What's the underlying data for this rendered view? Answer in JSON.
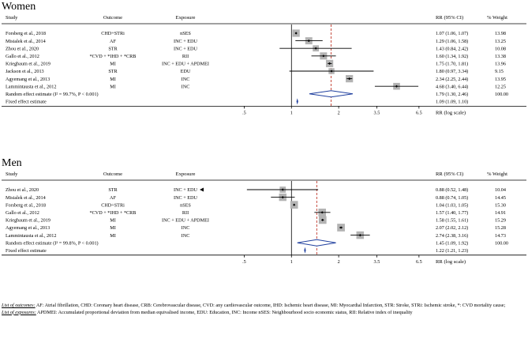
{
  "chart_data": [
    {
      "type": "forest",
      "title": "Women",
      "headers": {
        "study": "Study",
        "outcome": "Outcome",
        "exposure": "Exposure",
        "rr": "RR (95% CI)",
        "weight": "% Weight"
      },
      "xlabel": "RR (log scale)",
      "xticks": [
        ".5",
        "1",
        "2",
        "3.5",
        "6.5"
      ],
      "xlim": [
        0.26,
        8.4
      ],
      "null_line": 1,
      "pooled_line": 1.79,
      "studies": [
        {
          "study": "Forsberg et al., 2018",
          "outcome": "CHD+STRi",
          "exposure": "nSES",
          "rr": 1.07,
          "lo": 1.06,
          "hi": 1.07,
          "label": "1.07 (1.06, 1.07)",
          "weight": "13.98"
        },
        {
          "study": "Misialek et al., 2014",
          "outcome": "AF",
          "exposure": "INC + EDU",
          "rr": 1.29,
          "lo": 1.06,
          "hi": 1.58,
          "label": "1.29 (1.06, 1.58)",
          "weight": "13.25"
        },
        {
          "study": "Zhou et al., 2020",
          "outcome": "STR",
          "exposure": "INC + EDU",
          "rr": 1.43,
          "lo": 0.84,
          "hi": 2.42,
          "label": "1.43 (0.84, 2.42)",
          "weight": "10.08"
        },
        {
          "study": "Gallo et al., 2012",
          "outcome": "*CVD + *IHD + *CRB",
          "exposure": "RII",
          "rr": 1.6,
          "lo": 1.34,
          "hi": 1.92,
          "label": "1.60 (1.34, 1.92)",
          "weight": "13.38"
        },
        {
          "study": "Kriegbaum et al., 2019",
          "outcome": "MI",
          "exposure": "INC + EDU + APDMEI",
          "rr": 1.75,
          "lo": 1.7,
          "hi": 1.81,
          "label": "1.75 (1.70, 1.81)",
          "weight": "13.96"
        },
        {
          "study": "Jackson et al., 2013",
          "outcome": "STR",
          "exposure": "EDU",
          "rr": 1.8,
          "lo": 0.97,
          "hi": 3.34,
          "label": "1.80 (0.97, 3.34)",
          "weight": "9.15"
        },
        {
          "study": "Agyemang et al., 2013",
          "outcome": "MI",
          "exposure": "INC",
          "rr": 2.34,
          "lo": 2.25,
          "hi": 2.44,
          "label": "2.34 (2.25, 2.44)",
          "weight": "13.95"
        },
        {
          "study": "Lammintausta et al., 2012",
          "outcome": "MI",
          "exposure": "INC",
          "rr": 4.68,
          "lo": 3.4,
          "hi": 6.44,
          "label": "4.68 (3.40, 6.44)",
          "weight": "12.25"
        }
      ],
      "random": {
        "label_text": "Random effect estimate (I² = 99.7%, P < 0.001)",
        "rr": 1.79,
        "lo": 1.3,
        "hi": 2.46,
        "label": "1.79 (1.30, 2.46)",
        "weight": "100.00"
      },
      "fixed": {
        "label_text": "Fixed effect estimate",
        "rr": 1.09,
        "lo": 1.09,
        "hi": 1.1,
        "label": "1.09 (1.09, 1.10)"
      }
    },
    {
      "type": "forest",
      "title": "Men",
      "headers": {
        "study": "Study",
        "outcome": "Outcome",
        "exposure": "Exposure",
        "rr": "RR (95% CI)",
        "weight": "% Weight"
      },
      "xlabel": "RR (log scale)",
      "xticks": [
        ".5",
        "1",
        "2",
        "3.5",
        "6.5"
      ],
      "xlim": [
        0.26,
        8.4
      ],
      "null_line": 1,
      "pooled_line": 1.45,
      "studies": [
        {
          "study": "Zhou et al., 2020",
          "outcome": "STR",
          "exposure": "INC + EDU",
          "rr": 0.88,
          "lo": 0.52,
          "hi": 1.48,
          "label": "0.88 (0.52, 1.48)",
          "weight": "10.04",
          "arrow_left": true
        },
        {
          "study": "Misialek et al., 2014",
          "outcome": "AF",
          "exposure": "INC + EDU",
          "rr": 0.88,
          "lo": 0.74,
          "hi": 1.05,
          "label": "0.88 (0.74, 1.05)",
          "weight": "14.45"
        },
        {
          "study": "Forsberg et al., 2018",
          "outcome": "CHD+STRi",
          "exposure": "nSES",
          "rr": 1.04,
          "lo": 1.03,
          "hi": 1.05,
          "label": "1.04 (1.03, 1.05)",
          "weight": "15.30"
        },
        {
          "study": "Gallo et al., 2012",
          "outcome": "*CVD + *IHD + *CRB",
          "exposure": "RII",
          "rr": 1.57,
          "lo": 1.4,
          "hi": 1.77,
          "label": "1.57 (1.40, 1.77)",
          "weight": "14.91"
        },
        {
          "study": "Kriegbaum et al., 2019",
          "outcome": "MI",
          "exposure": "INC + EDU + APDMEI",
          "rr": 1.58,
          "lo": 1.55,
          "hi": 1.61,
          "label": "1.58 (1.55, 1.61)",
          "weight": "15.29"
        },
        {
          "study": "Agyemang et al., 2013",
          "outcome": "MI",
          "exposure": "INC",
          "rr": 2.07,
          "lo": 2.02,
          "hi": 2.12,
          "label": "2.07 (2.02, 2.12)",
          "weight": "15.28"
        },
        {
          "study": "Lammintausta et al., 2012",
          "outcome": "MI",
          "exposure": "INC",
          "rr": 2.74,
          "lo": 2.38,
          "hi": 3.16,
          "label": "2.74 (2.38, 3.16)",
          "weight": "14.73"
        }
      ],
      "random": {
        "label_text": "Random effect estimate (I² = 99.8%, P < 0.001)",
        "rr": 1.45,
        "lo": 1.09,
        "hi": 1.92,
        "label": "1.45 (1.09, 1.92)",
        "weight": "100.00"
      },
      "fixed": {
        "label_text": "Fixed effect estimate",
        "rr": 1.22,
        "lo": 1.21,
        "hi": 1.23,
        "label": "1.22 (1.21, 1.23)"
      }
    }
  ],
  "footnotes": {
    "outcomes_title": "List of outcomes:",
    "outcomes_text": "AF: Atrial fibrillation, CHD: Coronary heart disease, CRB: Cerebrovascular disease, CVD: any cardiovascular outcome, IHD: Ischemic heart disease, MI: Myocardial Infarction, STR: Stroke, STRi: Ischemic stroke, *: CVD mortality cause;",
    "exposures_title": "List of exposures:",
    "exposures_text": "APDMEI: Accumulated proportional deviation from median equivalised income, EDU: Education, INC: Income nSES: Neighbourhood socio economic status, RII: Relative index of inequality"
  },
  "colors": {
    "box": "#b3b3b3",
    "pooled_line": "#c0392b",
    "diamond": "#1f3f9e",
    "text": "#000000"
  }
}
